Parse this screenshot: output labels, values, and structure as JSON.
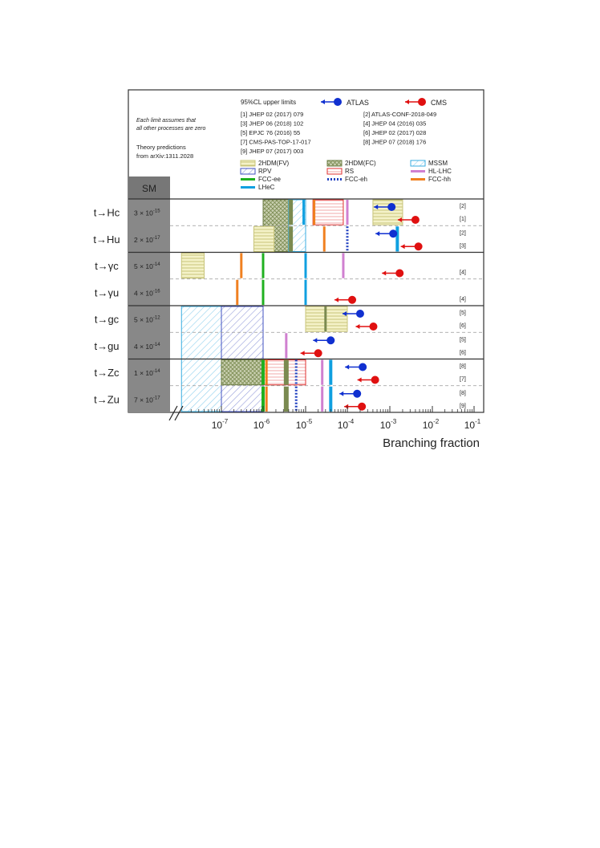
{
  "legend": {
    "upper_limits_label": "95%CL upper limits",
    "atlas": "ATLAS",
    "cms": "CMS",
    "note_line1": "Each limit assumes that",
    "note_line2": "all other processes are zero",
    "theory_line1": "Theory predictions",
    "theory_line2": "from arXiv:1311.2028",
    "references": [
      "[1] JHEP 02 (2017) 079",
      "[2] ATLAS-CONF-2018-049",
      "[3] JHEP 06 (2018) 102",
      "[4] JHEP 04 (2016) 035",
      "[5] EPJC 76 (2016) 55",
      "[6] JHEP 02 (2017) 028",
      "[7] CMS-PAS-TOP-17-017",
      "[8] JHEP 07 (2018) 176",
      "[9] JHEP 07 (2017) 003"
    ],
    "models": [
      {
        "name": "2HDM(FV)",
        "color": "#d8d890",
        "pattern": "horizontal"
      },
      {
        "name": "2HDM(FC)",
        "color": "#7a8a50",
        "pattern": "grid"
      },
      {
        "name": "MSSM",
        "color": "#3aaee0",
        "pattern": "diagonal"
      },
      {
        "name": "RPV",
        "color": "#4050c0",
        "pattern": "diagonal"
      },
      {
        "name": "RS",
        "color": "#e03030",
        "pattern": "horizontal"
      },
      {
        "name": "HL-LHC",
        "color": "#d080d0",
        "pattern": "line"
      },
      {
        "name": "FCC-ee",
        "color": "#20b020",
        "pattern": "line"
      },
      {
        "name": "FCC-eh",
        "color": "#2040c0",
        "pattern": "dotted"
      },
      {
        "name": "FCC-hh",
        "color": "#f08020",
        "pattern": "line"
      },
      {
        "name": "LHeC",
        "color": "#10a0e0",
        "pattern": "line"
      }
    ]
  },
  "chart_data": {
    "type": "bar",
    "xlabel": "Branching fraction",
    "xscale": "log",
    "xlim": [
      1e-08,
      0.1
    ],
    "x_ticks": [
      {
        "exp": "-7",
        "value": 1e-07
      },
      {
        "exp": "-6",
        "value": 1e-06
      },
      {
        "exp": "-5",
        "value": 1e-05
      },
      {
        "exp": "-4",
        "value": 0.0001
      },
      {
        "exp": "-3",
        "value": 0.001
      },
      {
        "exp": "-2",
        "value": 0.01
      },
      {
        "exp": "-1",
        "value": 0.1
      }
    ],
    "sm_header": "SM",
    "groups": [
      {
        "label": "t→Hc",
        "sm": "3 × 10",
        "sm_exp": "-15",
        "atlas_ref": "[2]",
        "cms_ref": "[1]",
        "atlas_limit": 0.0011,
        "cms_limit": 0.004
      },
      {
        "label": "t→Hu",
        "sm": "2 × 10",
        "sm_exp": "-17",
        "atlas_ref": "[2]",
        "cms_ref": "[3]",
        "atlas_limit": 0.0012,
        "cms_limit": 0.0047
      },
      {
        "label": "t→γc",
        "sm": "5 × 10",
        "sm_exp": "-14",
        "atlas_ref": "",
        "cms_ref": "[4]",
        "atlas_limit": null,
        "cms_limit": 0.0017
      },
      {
        "label": "t→γu",
        "sm": "4 × 10",
        "sm_exp": "-16",
        "atlas_ref": "",
        "cms_ref": "[4]",
        "atlas_limit": null,
        "cms_limit": 0.00013
      },
      {
        "label": "t→gc",
        "sm": "5 × 10",
        "sm_exp": "-12",
        "atlas_ref": "[5]",
        "cms_ref": "[6]",
        "atlas_limit": 0.0002,
        "cms_limit": 0.00041
      },
      {
        "label": "t→gu",
        "sm": "4 × 10",
        "sm_exp": "-14",
        "atlas_ref": "[5]",
        "cms_ref": "[6]",
        "atlas_limit": 4e-05,
        "cms_limit": 2e-05
      },
      {
        "label": "t→Zc",
        "sm": "1 × 10",
        "sm_exp": "-14",
        "atlas_ref": "[8]",
        "cms_ref": "[7]",
        "atlas_limit": 0.00023,
        "cms_limit": 0.00045
      },
      {
        "label": "t→Zu",
        "sm": "7 × 10",
        "sm_exp": "-17",
        "atlas_ref": "[8]",
        "cms_ref": "[9]",
        "atlas_limit": 0.00017,
        "cms_limit": 0.00022
      }
    ],
    "boxes": [
      {
        "model": "2HDM(FC)",
        "rows": [
          0,
          2
        ],
        "x": [
          1e-06,
          4e-06
        ]
      },
      {
        "model": "2HDM(FV)",
        "rows": [
          0,
          1
        ],
        "x": [
          0.0004,
          0.002
        ]
      },
      {
        "model": "2HDM(FV)",
        "rows": [
          1,
          2
        ],
        "x": [
          6e-07,
          1.8e-06
        ]
      },
      {
        "model": "MSSM",
        "rows": [
          0,
          2
        ],
        "x": [
          4e-06,
          1e-05
        ]
      },
      {
        "model": "RS",
        "rows": [
          0,
          1
        ],
        "x": [
          1.5e-05,
          8e-05
        ]
      },
      {
        "model": "2HDM(FV)",
        "rows": [
          2,
          3
        ],
        "x": [
          1.2e-08,
          4e-08
        ]
      },
      {
        "model": "2HDM(FV)",
        "rows": [
          4,
          5
        ],
        "x": [
          1e-05,
          0.0001
        ]
      },
      {
        "model": "MSSM",
        "rows": [
          4,
          8
        ],
        "x": [
          1.2e-08,
          1e-07
        ]
      },
      {
        "model": "RPV",
        "rows": [
          4,
          8
        ],
        "x": [
          1e-07,
          1e-06
        ]
      },
      {
        "model": "2HDM(FC)",
        "rows": [
          6,
          7
        ],
        "x": [
          1e-07,
          3e-06
        ]
      },
      {
        "model": "RS",
        "rows": [
          6,
          7
        ],
        "x": [
          1e-06,
          1e-05
        ]
      }
    ],
    "lines": [
      {
        "model": "2HDM(FC)",
        "row": 0,
        "x": 4.5e-06,
        "w": 5
      },
      {
        "model": "2HDM(FC)",
        "row": 1,
        "x": 4.5e-06,
        "w": 5
      },
      {
        "model": "LHeC",
        "row": 0,
        "x": 9e-06,
        "w": 3
      },
      {
        "model": "FCC-hh",
        "row": 0,
        "x": 1.6e-05,
        "w": 3
      },
      {
        "model": "HL-LHC",
        "row": 0,
        "x": 0.0001,
        "w": 3
      },
      {
        "model": "FCC-hh",
        "row": 1,
        "x": 2.8e-05,
        "w": 3
      },
      {
        "model": "FCC-eh",
        "row": 1,
        "x": 0.0001,
        "w": 3
      },
      {
        "model": "LHeC",
        "row": 1,
        "x": 0.0015,
        "w": 4
      },
      {
        "model": "FCC-hh",
        "row": 2,
        "x": 3e-07,
        "w": 3
      },
      {
        "model": "FCC-ee",
        "row": 2,
        "x": 1e-06,
        "w": 3
      },
      {
        "model": "LHeC",
        "row": 2,
        "x": 1e-05,
        "w": 3
      },
      {
        "model": "HL-LHC",
        "row": 2,
        "x": 8e-05,
        "w": 3
      },
      {
        "model": "FCC-hh",
        "row": 3,
        "x": 2.4e-07,
        "w": 3
      },
      {
        "model": "FCC-ee",
        "row": 3,
        "x": 1e-06,
        "w": 3
      },
      {
        "model": "LHeC",
        "row": 3,
        "x": 1e-05,
        "w": 3
      },
      {
        "model": "2HDM(FC)",
        "row": 4,
        "x": 3e-05,
        "w": 3
      },
      {
        "model": "HL-LHC",
        "row": 5,
        "x": 3.5e-06,
        "w": 3
      },
      {
        "model": "FCC-ee",
        "row": 6,
        "x": 1e-06,
        "w": 4
      },
      {
        "model": "FCC-hh",
        "row": 6,
        "x": 1.2e-06,
        "w": 3
      },
      {
        "model": "2HDM(FC)",
        "row": 6,
        "x": 3.5e-06,
        "w": 6
      },
      {
        "model": "FCC-eh",
        "row": 6,
        "x": 6e-06,
        "w": 3
      },
      {
        "model": "HL-LHC",
        "row": 6,
        "x": 2.5e-05,
        "w": 3
      },
      {
        "model": "LHeC",
        "row": 6,
        "x": 4e-05,
        "w": 4
      },
      {
        "model": "FCC-ee",
        "row": 7,
        "x": 1e-06,
        "w": 4
      },
      {
        "model": "FCC-hh",
        "row": 7,
        "x": 1.2e-06,
        "w": 3
      },
      {
        "model": "2HDM(FC)",
        "row": 7,
        "x": 3.5e-06,
        "w": 6
      },
      {
        "model": "FCC-eh",
        "row": 7,
        "x": 6e-06,
        "w": 3
      },
      {
        "model": "HL-LHC",
        "row": 7,
        "x": 2.5e-05,
        "w": 3
      },
      {
        "model": "LHeC",
        "row": 7,
        "x": 4e-05,
        "w": 4
      }
    ]
  }
}
